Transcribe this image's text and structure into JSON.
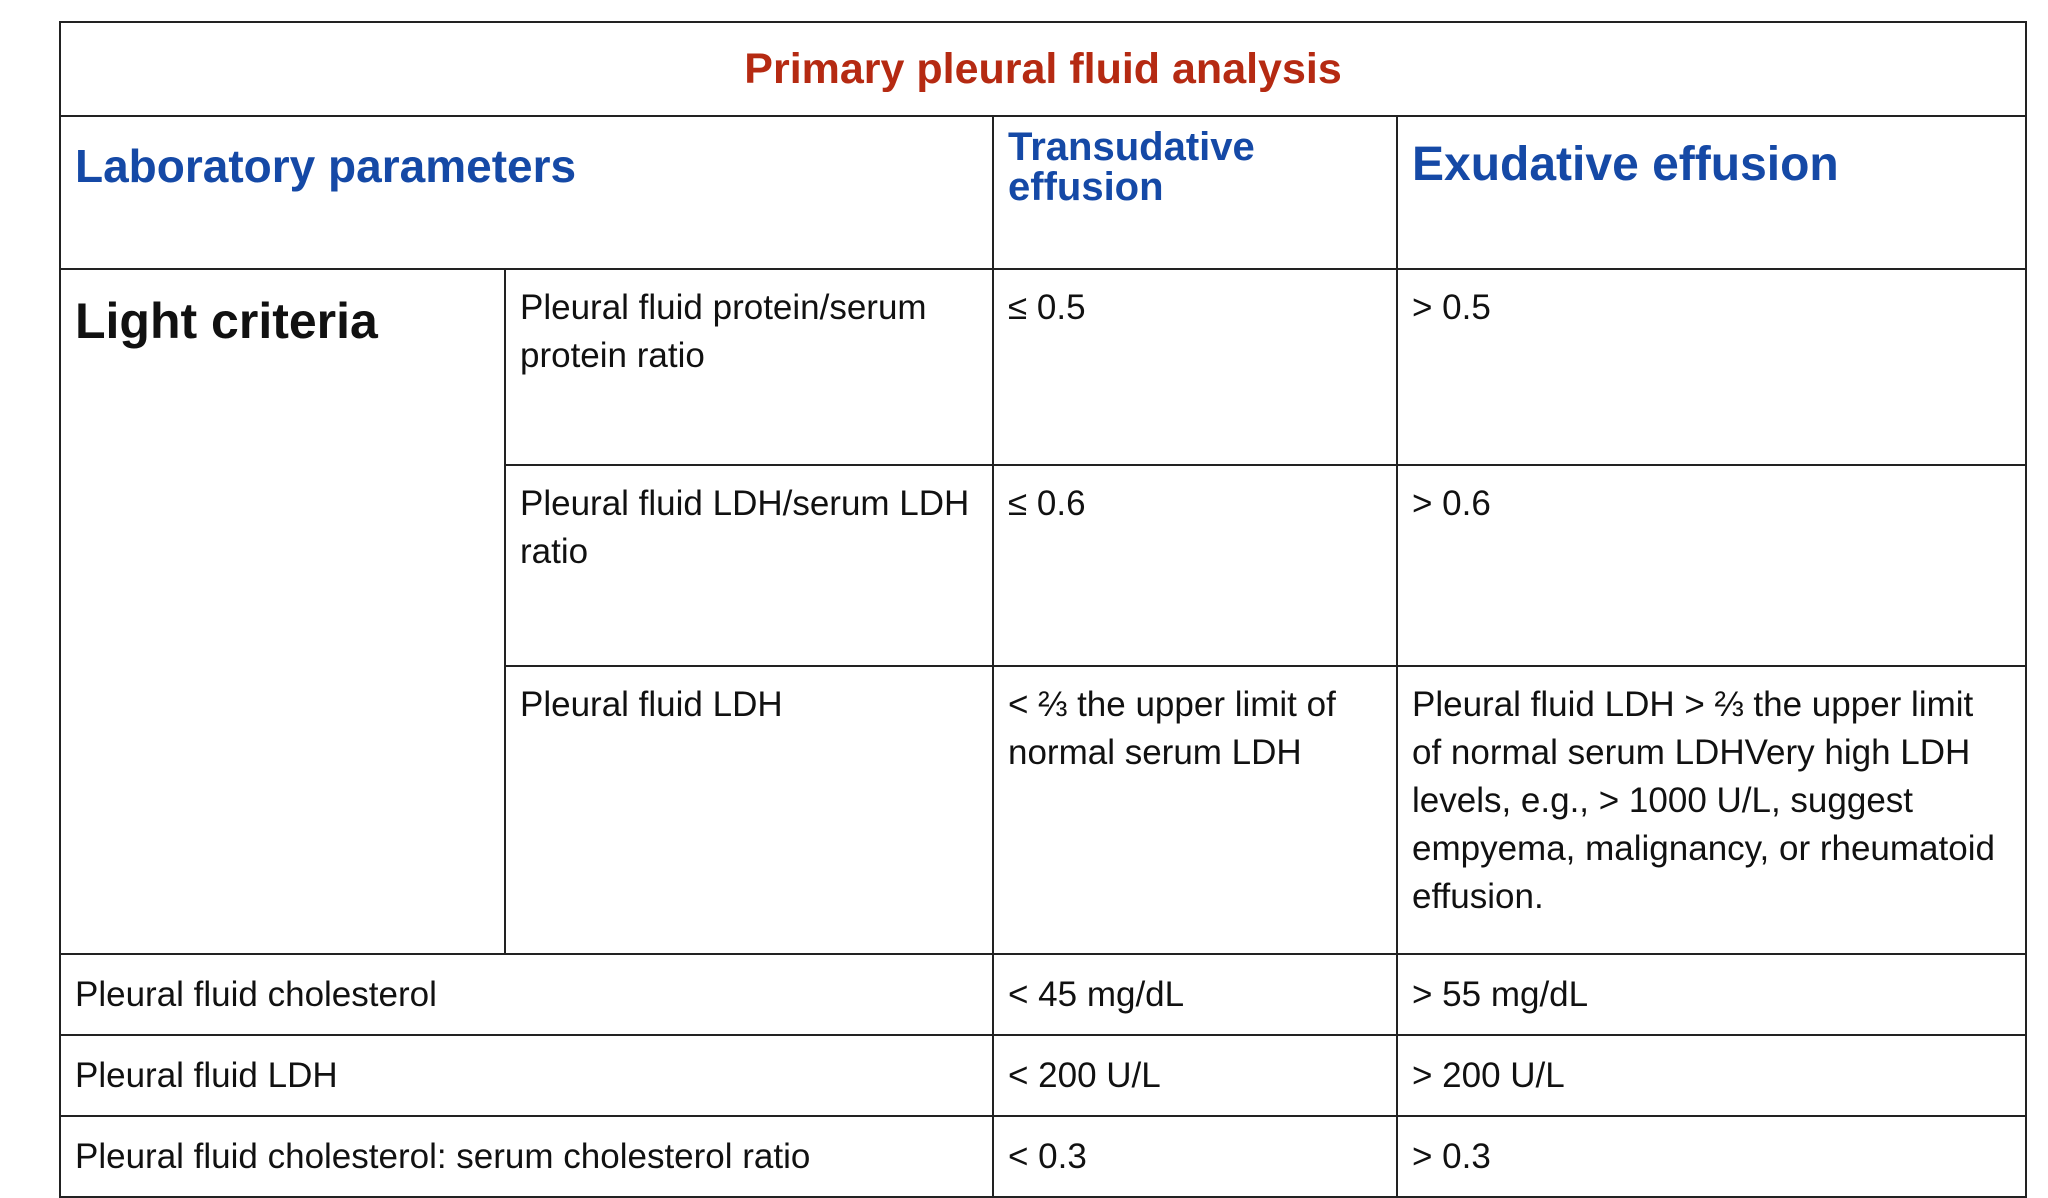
{
  "table": {
    "title": "Primary pleural fluid analysis",
    "headers": {
      "parameters": "Laboratory parameters",
      "transudative": "Transudative effusion",
      "exudative": "Exudative effusion"
    },
    "light_criteria": {
      "label": "Light criteria",
      "rows": [
        {
          "parameter": "Pleural fluid protein/serum protein ratio",
          "transudative": "≤ 0.5",
          "exudative": "> 0.5"
        },
        {
          "parameter": "Pleural fluid LDH/serum LDH ratio",
          "transudative": "≤ 0.6",
          "exudative": "> 0.6"
        },
        {
          "parameter": "Pleural fluid LDH",
          "transudative": "< ⅔ the upper limit of normal serum LDH",
          "exudative": "Pleural fluid LDH > ⅔ the upper limit of normal serum LDHVery high LDH levels, e.g., > 1000 U/L, suggest empyema, malignancy, or rheumatoid effusion."
        }
      ]
    },
    "other_rows": [
      {
        "parameter": "Pleural fluid cholesterol",
        "transudative": "< 45 mg/dL",
        "exudative": "> 55 mg/dL"
      },
      {
        "parameter": "Pleural fluid LDH",
        "transudative": "< 200 U/L",
        "exudative": "> 200 U/L"
      },
      {
        "parameter": "Pleural fluid cholesterol: serum cholesterol ratio",
        "transudative": "< 0.3",
        "exudative": "> 0.3"
      }
    ]
  },
  "colors": {
    "title": "#b52a12",
    "header": "#1549a6",
    "border": "#222222"
  }
}
